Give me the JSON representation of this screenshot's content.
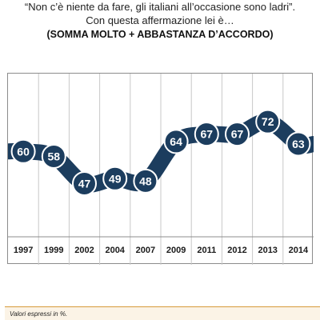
{
  "header": {
    "title_line1": "“Non c’è niente da fare, gli italiani all’occasione sono ladri”.",
    "title_line2": "Con questa affermazione lei è…",
    "title_line3": "(SOMMA MOLTO + ABBASTANZA D’ACCORDO)"
  },
  "footer": {
    "note": "Valori espressi in %."
  },
  "colors": {
    "line": "#1c3d5e",
    "marker_fill": "#1c3d5e",
    "marker_text": "#ffffff",
    "grid": "#c8c8c8",
    "frame": "#8c8c8c"
  },
  "chart_data": {
    "type": "line",
    "title": "“Non c’è niente da fare, gli italiani all’occasione sono ladri”. Con questa affermazione lei è… (SOMMA MOLTO + ABBASTANZA D’ACCORDO)",
    "xlabel": "",
    "ylabel": "",
    "categories": [
      "1997",
      "1999",
      "2002",
      "2004",
      "2007",
      "2009",
      "2011",
      "2012",
      "2013",
      "2014"
    ],
    "series": [
      {
        "values": [
          60,
          58,
          47,
          49,
          48,
          64,
          67,
          67,
          72,
          63
        ]
      }
    ],
    "ylim": [
      30,
      85
    ],
    "grid": "vertical",
    "data_labels": true,
    "legend": "none"
  }
}
